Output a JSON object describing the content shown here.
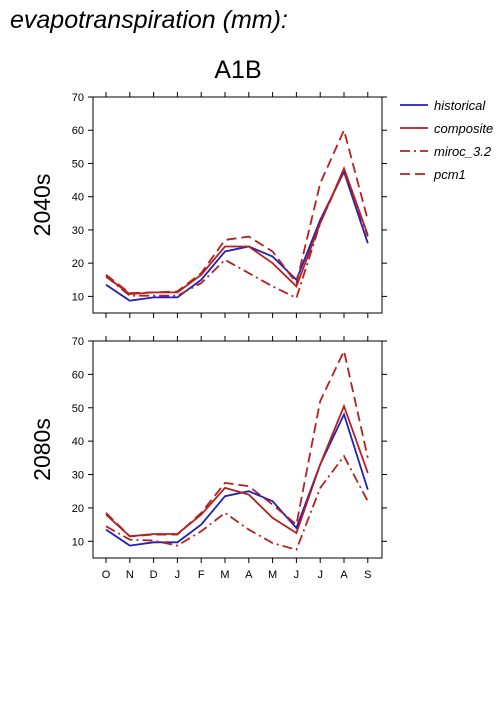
{
  "title": "evapotranspiration (mm):",
  "scenario": "A1B",
  "chart_data": {
    "type": "line",
    "months": [
      "O",
      "N",
      "D",
      "J",
      "F",
      "M",
      "A",
      "M",
      "J",
      "J",
      "A",
      "S"
    ],
    "ylim": [
      5,
      70
    ],
    "yticks": [
      10,
      20,
      30,
      40,
      50,
      60,
      70
    ],
    "legend": {
      "placement": "right",
      "entries": [
        {
          "name": "historical",
          "color": "#1f1fbf",
          "dash": "solid"
        },
        {
          "name": "composite",
          "color": "#b52020",
          "dash": "solid"
        },
        {
          "name": "miroc_3.2",
          "color": "#b52020",
          "dash": "dashdot"
        },
        {
          "name": "pcm1",
          "color": "#b52020",
          "dash": "dashed"
        }
      ]
    },
    "panels": [
      {
        "label": "2040s",
        "series": [
          {
            "name": "historical",
            "values": [
              13.5,
              8.7,
              9.7,
              9.7,
              15,
              23.5,
              25,
              22,
              15,
              33,
              47.5,
              26
            ]
          },
          {
            "name": "composite",
            "values": [
              16,
              10.7,
              11.2,
              11.2,
              16.5,
              25,
              25,
              20,
              13,
              32,
              48.5,
              28.5
            ]
          },
          {
            "name": "miroc_3.2",
            "values": [
              16,
              10.2,
              10.2,
              10.2,
              14,
              21,
              17,
              13,
              9.5,
              32,
              48,
              28
            ]
          },
          {
            "name": "pcm1",
            "values": [
              16.5,
              11,
              11.2,
              11.5,
              17,
              27,
              28,
              23.5,
              14,
              44,
              60,
              33
            ]
          }
        ]
      },
      {
        "label": "2080s",
        "series": [
          {
            "name": "historical",
            "values": [
              13.5,
              8.7,
              9.7,
              9.7,
              15,
              23.5,
              25,
              22,
              14,
              33,
              48,
              25.5
            ]
          },
          {
            "name": "composite",
            "values": [
              18,
              11.5,
              12.2,
              12.2,
              18,
              26,
              24,
              17,
              12.5,
              33,
              50.5,
              30.5
            ]
          },
          {
            "name": "miroc_3.2",
            "values": [
              14.5,
              10.5,
              10.2,
              8.7,
              13,
              18.5,
              13.5,
              9.5,
              7.5,
              26,
              35.5,
              22
            ]
          },
          {
            "name": "pcm1",
            "values": [
              18.5,
              11.5,
              12,
              12,
              18.5,
              27.5,
              26.5,
              21,
              15,
              52,
              67,
              35
            ]
          }
        ]
      }
    ]
  }
}
